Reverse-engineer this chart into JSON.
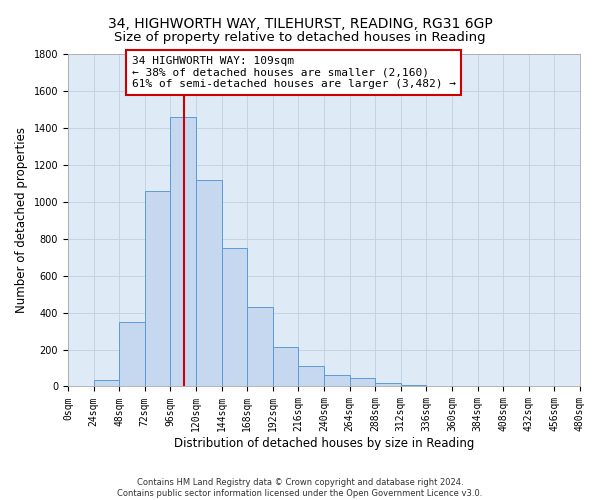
{
  "title_line1": "34, HIGHWORTH WAY, TILEHURST, READING, RG31 6GP",
  "title_line2": "Size of property relative to detached houses in Reading",
  "xlabel": "Distribution of detached houses by size in Reading",
  "ylabel": "Number of detached properties",
  "footnote": "Contains HM Land Registry data © Crown copyright and database right 2024.\nContains public sector information licensed under the Open Government Licence v3.0.",
  "bar_edges": [
    0,
    24,
    48,
    72,
    96,
    120,
    144,
    168,
    192,
    216,
    240,
    264,
    288,
    312,
    336,
    360,
    384,
    408,
    432,
    456,
    480
  ],
  "bar_heights": [
    0,
    35,
    350,
    1060,
    1460,
    1120,
    750,
    430,
    215,
    110,
    60,
    45,
    20,
    10,
    2,
    1,
    0,
    0,
    0,
    0
  ],
  "bar_color": "#c5d8f0",
  "bar_edgecolor": "#5b9bd5",
  "property_sqm": 109,
  "vline_color": "#cc0000",
  "annotation_line1": "34 HIGHWORTH WAY: 109sqm",
  "annotation_line2": "← 38% of detached houses are smaller (2,160)",
  "annotation_line3": "61% of semi-detached houses are larger (3,482) →",
  "annotation_box_edgecolor": "#cc0000",
  "annotation_box_facecolor": "#ffffff",
  "ylim": [
    0,
    1800
  ],
  "yticks": [
    0,
    200,
    400,
    600,
    800,
    1000,
    1200,
    1400,
    1600,
    1800
  ],
  "xtick_labels": [
    "0sqm",
    "24sqm",
    "48sqm",
    "72sqm",
    "96sqm",
    "120sqm",
    "144sqm",
    "168sqm",
    "192sqm",
    "216sqm",
    "240sqm",
    "264sqm",
    "288sqm",
    "312sqm",
    "336sqm",
    "360sqm",
    "384sqm",
    "408sqm",
    "432sqm",
    "456sqm",
    "480sqm"
  ],
  "grid_color": "#c0d0e0",
  "bg_color": "#deeaf6",
  "title_fontsize": 10,
  "subtitle_fontsize": 9.5,
  "axis_label_fontsize": 8.5,
  "tick_fontsize": 7,
  "annotation_fontsize": 8,
  "footnote_fontsize": 6
}
